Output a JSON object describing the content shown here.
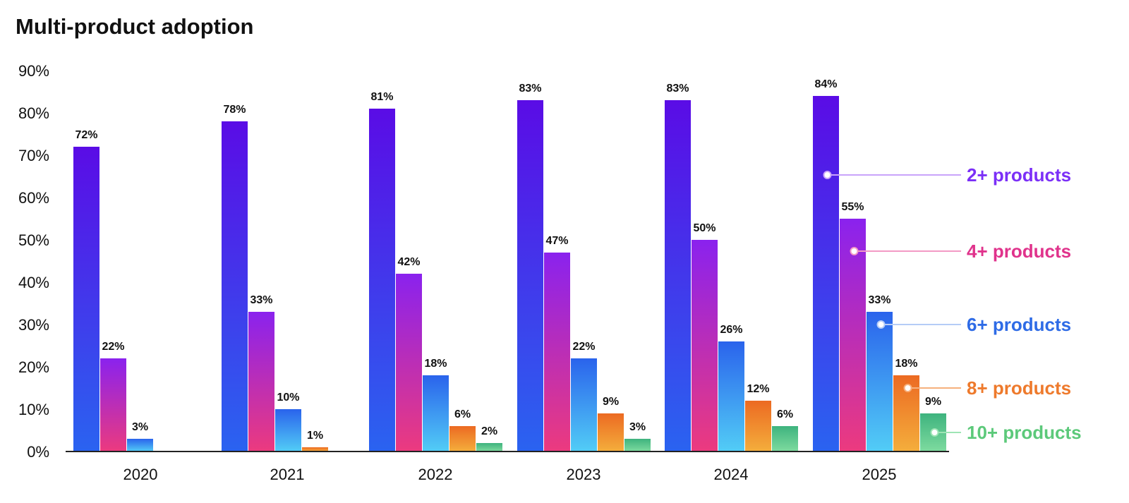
{
  "chart_data": {
    "type": "bar",
    "title": "Multi-product adoption",
    "xlabel": "",
    "ylabel": "",
    "categories": [
      "2020",
      "2021",
      "2022",
      "2023",
      "2024",
      "2025"
    ],
    "ylim": [
      0,
      90
    ],
    "yticks": [
      "0%",
      "10%",
      "20%",
      "30%",
      "40%",
      "50%",
      "60%",
      "70%",
      "80%",
      "90%"
    ],
    "grid": false,
    "legend_position": "right",
    "series": [
      {
        "name": "2+ products",
        "values": [
          72,
          78,
          81,
          83,
          83,
          84
        ],
        "labels": [
          "72%",
          "78%",
          "81%",
          "83%",
          "83%",
          "84%"
        ],
        "color": "#7B2FF7",
        "gradient": [
          "#5A0CE6",
          "#2A63F0"
        ]
      },
      {
        "name": "4+ products",
        "values": [
          22,
          33,
          42,
          47,
          50,
          55
        ],
        "labels": [
          "22%",
          "33%",
          "42%",
          "47%",
          "50%",
          "55%"
        ],
        "color": "#E0338C",
        "gradient": [
          "#8A22EE",
          "#EC3A7E"
        ]
      },
      {
        "name": "6+ products",
        "values": [
          3,
          10,
          18,
          22,
          26,
          33
        ],
        "labels": [
          "3%",
          "10%",
          "18%",
          "22%",
          "26%",
          "33%"
        ],
        "color": "#2E6BE6",
        "gradient": [
          "#2A63EC",
          "#52CDF6"
        ]
      },
      {
        "name": "8+ products",
        "values": [
          null,
          1,
          6,
          9,
          12,
          18
        ],
        "labels": [
          "",
          "1%",
          "6%",
          "9%",
          "12%",
          "18%"
        ],
        "color": "#EE7A2C",
        "gradient": [
          "#EC6A22",
          "#F4AE3C"
        ]
      },
      {
        "name": "10+ products",
        "values": [
          null,
          null,
          2,
          3,
          6,
          9
        ],
        "labels": [
          "",
          "",
          "2%",
          "3%",
          "6%",
          "9%"
        ],
        "color": "#5CC97A",
        "gradient": [
          "#3EB37E",
          "#7EDB9F"
        ]
      }
    ]
  }
}
